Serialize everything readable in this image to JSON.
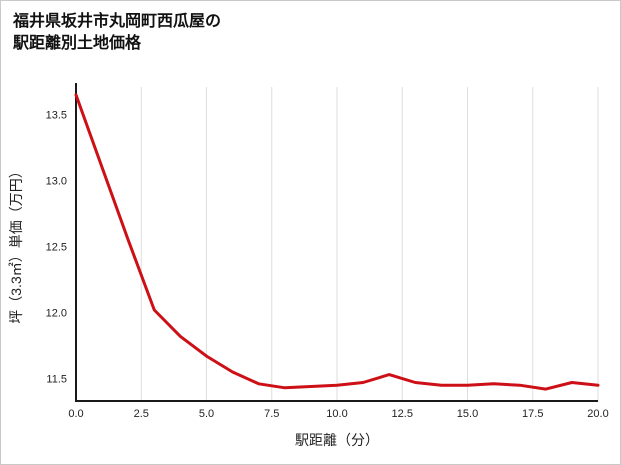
{
  "title_line1": "福井県坂井市丸岡町西瓜屋の",
  "title_line2": "駅距離別土地価格",
  "colors": {
    "line": "#cc1016",
    "grid": "#dedede",
    "axis": "#1a1a1a",
    "background": "#ffffff",
    "border": "#c9c9c9"
  },
  "chart_data": {
    "type": "line",
    "title": "福井県坂井市丸岡町西瓜屋の駅距離別土地価格",
    "xlabel": "駅距離（分）",
    "ylabel": "坪（3.3㎡）単価（万円）",
    "x": [
      0,
      1,
      2,
      3,
      4,
      5,
      6,
      7,
      8,
      9,
      10,
      11,
      12,
      13,
      14,
      15,
      16,
      17,
      18,
      19,
      20
    ],
    "values": [
      13.65,
      13.1,
      12.55,
      12.02,
      11.82,
      11.67,
      11.55,
      11.46,
      11.43,
      11.44,
      11.45,
      11.47,
      11.53,
      11.47,
      11.45,
      11.45,
      11.46,
      11.45,
      11.42,
      11.47,
      11.45
    ],
    "xlim": [
      0,
      20
    ],
    "ylim": [
      11.33,
      13.71
    ],
    "xticks": [
      0,
      2.5,
      5,
      7.5,
      10,
      12.5,
      15,
      17.5,
      20
    ],
    "xtick_labels": [
      "0.0",
      "2.5",
      "5.0",
      "7.5",
      "10.0",
      "12.5",
      "15.0",
      "17.5",
      "20.0"
    ],
    "yticks": [
      11.5,
      12.0,
      12.5,
      13.0,
      13.5
    ],
    "ytick_labels": [
      "11.5",
      "12.0",
      "12.5",
      "13.0",
      "13.5"
    ],
    "grid": "vertical-only",
    "legend": "none"
  }
}
